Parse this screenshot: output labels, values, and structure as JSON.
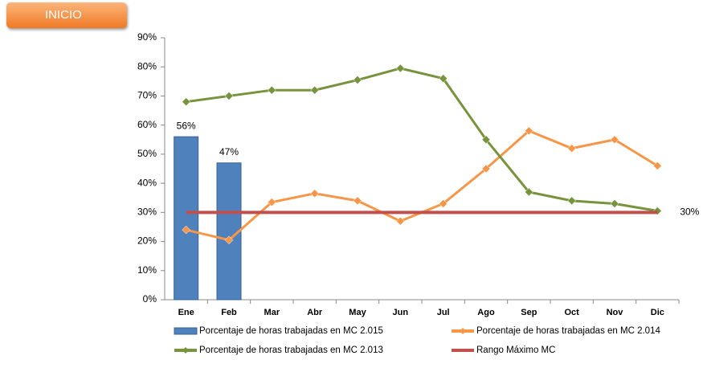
{
  "button": {
    "label": "INICIO"
  },
  "chart_data": {
    "type": "combo",
    "categories": [
      "Ene",
      "Feb",
      "Mar",
      "Abr",
      "May",
      "Jun",
      "Jul",
      "Ago",
      "Sep",
      "Oct",
      "Nov",
      "Dic"
    ],
    "ylim": [
      0,
      90
    ],
    "yticks": [
      {
        "value": 0,
        "label": "0%"
      },
      {
        "value": 10,
        "label": "10%"
      },
      {
        "value": 20,
        "label": "20%"
      },
      {
        "value": 30,
        "label": "30%"
      },
      {
        "value": 40,
        "label": "40%"
      },
      {
        "value": 50,
        "label": "50%"
      },
      {
        "value": 60,
        "label": "60%"
      },
      {
        "value": 70,
        "label": "70%"
      },
      {
        "value": 80,
        "label": "80%"
      },
      {
        "value": 90,
        "label": "90%"
      }
    ],
    "grid": false,
    "legend": "bottom",
    "series": [
      {
        "name": "Porcentaje de horas trabajadas en MC 2.015",
        "type": "bar",
        "color": "#4f81bd",
        "values": [
          56,
          47,
          null,
          null,
          null,
          null,
          null,
          null,
          null,
          null,
          null,
          null
        ],
        "value_labels": [
          "56%",
          "47%",
          null,
          null,
          null,
          null,
          null,
          null,
          null,
          null,
          null,
          null
        ],
        "label_color": "#1f3f8f"
      },
      {
        "name": "Porcentaje de horas trabajadas en MC 2.014",
        "type": "line",
        "marker": true,
        "color": "#f79646",
        "values": [
          24,
          20.5,
          33.5,
          36.5,
          34,
          27,
          33,
          45,
          58,
          52,
          55,
          46
        ]
      },
      {
        "name": "Porcentaje de horas trabajadas en MC 2.013",
        "type": "line",
        "marker": true,
        "color": "#77933c",
        "values": [
          68,
          70,
          72,
          72,
          75.5,
          79.5,
          76,
          55,
          37,
          34,
          33,
          30.5
        ]
      },
      {
        "name": "Rango Máximo MC",
        "type": "line",
        "marker": false,
        "color": "#c0504d",
        "values": [
          30,
          30,
          30,
          30,
          30,
          30,
          30,
          30,
          30,
          30,
          30,
          30
        ],
        "value_labels": [
          null,
          null,
          null,
          null,
          null,
          null,
          null,
          null,
          null,
          null,
          null,
          "30%"
        ],
        "label_color": "#e02020"
      }
    ]
  }
}
